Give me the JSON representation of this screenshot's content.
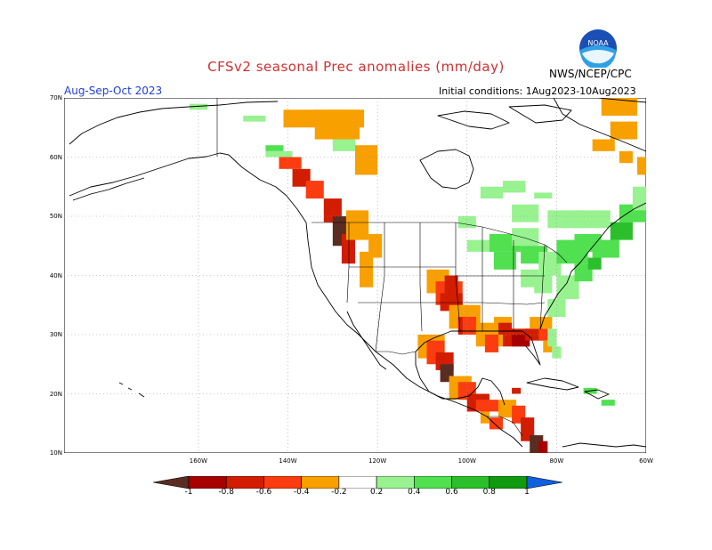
{
  "title": "CFSv2 seasonal Prec anomalies (mm/day)",
  "source": "NWS/NCEP/CPC",
  "season": "Aug-Sep-Oct 2023",
  "initial_conditions": "Initial conditions: 1Aug2023-10Aug2023",
  "logo_text": "NOAA",
  "y_ticks": [
    {
      "label": "70N",
      "lat": 70
    },
    {
      "label": "60N",
      "lat": 60
    },
    {
      "label": "50N",
      "lat": 50
    },
    {
      "label": "40N",
      "lat": 40
    },
    {
      "label": "30N",
      "lat": 30
    },
    {
      "label": "20N",
      "lat": 20
    },
    {
      "label": "10N",
      "lat": 10
    }
  ],
  "x_ticks": [
    {
      "label": "160W",
      "lon": -160
    },
    {
      "label": "140W",
      "lon": -140
    },
    {
      "label": "120W",
      "lon": -120
    },
    {
      "label": "100W",
      "lon": -100
    },
    {
      "label": "80W",
      "lon": -80
    },
    {
      "label": "60W",
      "lon": -60
    }
  ],
  "colorbar": {
    "labels": [
      "-1",
      "-0.8",
      "-0.6",
      "-0.4",
      "-0.2",
      "0.2",
      "0.4",
      "0.6",
      "0.8",
      "1"
    ],
    "colors": [
      "#5a2c22",
      "#a80000",
      "#d21d00",
      "#fb3c10",
      "#f7a000",
      "#ffffff",
      "#98f290",
      "#50e050",
      "#2bc02b",
      "#109a10",
      "#1060e0"
    ]
  },
  "colors": {
    "dry_strong": "#5a2c22",
    "dry_1": "#a80000",
    "dry_2": "#d21d00",
    "dry_3": "#fb3c10",
    "dry_4": "#f7a000",
    "wet_1": "#98f290",
    "wet_2": "#50e050",
    "wet_3": "#2bc02b",
    "title": "#d03030",
    "season": "#1d3fd8"
  }
}
